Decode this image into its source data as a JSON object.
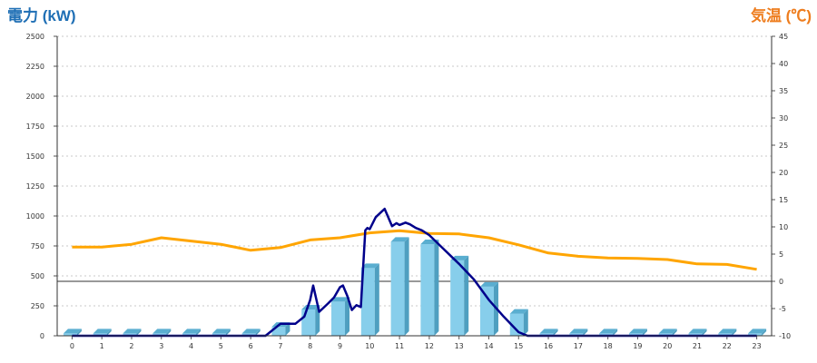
{
  "chart_data": {
    "type": "bar",
    "title": "",
    "y_left_label": "電力 (kW)",
    "y_right_label": "気温 (℃)",
    "categories": [
      "0",
      "1",
      "2",
      "3",
      "4",
      "5",
      "6",
      "7",
      "8",
      "9",
      "10",
      "11",
      "12",
      "13",
      "14",
      "15",
      "16",
      "17",
      "18",
      "19",
      "20",
      "21",
      "22",
      "23"
    ],
    "y_left_ticks": [
      "0",
      "250",
      "500",
      "750",
      "1000",
      "1250",
      "1500",
      "1750",
      "2000",
      "2250",
      "2500"
    ],
    "y_right_ticks": [
      "-10",
      "-5",
      "0",
      "5",
      "10",
      "15",
      "20",
      "25",
      "30",
      "35",
      "40",
      "45"
    ],
    "y_left_range": [
      0,
      2500
    ],
    "y_right_range": [
      -10,
      45
    ],
    "grid": "horizontal dotted",
    "colors": {
      "bar": "#87ceeb",
      "bar_side": "#4f9fc0",
      "bar_top": "#5aaed0",
      "power_line": "#00008b",
      "temperature_line": "#ffa500",
      "left_title": "#1f6fb5",
      "right_title": "#ee7d1e"
    },
    "series": [
      {
        "type": "bar",
        "axis": "left",
        "values": [
          20,
          20,
          20,
          20,
          20,
          20,
          20,
          75,
          220,
          285,
          565,
          785,
          765,
          630,
          410,
          185,
          20,
          20,
          20,
          20,
          20,
          20,
          20,
          20
        ]
      },
      {
        "type": "line",
        "axis": "left",
        "x": [
          0,
          1,
          2,
          3,
          4,
          5,
          6,
          6.5,
          7,
          7.5,
          7.8,
          8,
          8.1,
          8.3,
          8.6,
          8.8,
          9,
          9.1,
          9.25,
          9.4,
          9.55,
          9.7,
          9.85,
          9.92,
          10,
          10.2,
          10.5,
          10.75,
          10.9,
          11,
          11.2,
          11.35,
          11.55,
          11.75,
          12,
          12.5,
          13,
          13.5,
          14,
          14.5,
          15,
          15.3,
          15.5,
          16,
          17,
          18,
          19,
          20,
          21,
          22,
          23
        ],
        "values": [
          0,
          0,
          0,
          0,
          0,
          0,
          0,
          0,
          100,
          100,
          160,
          300,
          420,
          200,
          270,
          320,
          405,
          420,
          330,
          215,
          255,
          240,
          880,
          900,
          890,
          990,
          1060,
          915,
          940,
          925,
          945,
          930,
          900,
          880,
          840,
          720,
          600,
          470,
          300,
          160,
          30,
          0,
          0,
          0,
          0,
          0,
          0,
          0,
          0,
          0,
          0
        ]
      },
      {
        "type": "line",
        "axis": "right",
        "x": [
          0,
          1,
          2,
          3,
          4,
          5,
          6,
          7,
          8,
          9,
          10,
          11,
          12,
          13,
          14,
          15,
          16,
          17,
          18,
          19,
          20,
          21,
          22,
          23
        ],
        "values": [
          6.3,
          6.3,
          6.8,
          8.0,
          7.4,
          6.8,
          5.7,
          6.2,
          7.6,
          8.0,
          8.9,
          9.3,
          8.8,
          8.7,
          8.0,
          6.7,
          5.2,
          4.6,
          4.3,
          4.2,
          4.0,
          3.2,
          3.1,
          2.2
        ]
      }
    ]
  }
}
